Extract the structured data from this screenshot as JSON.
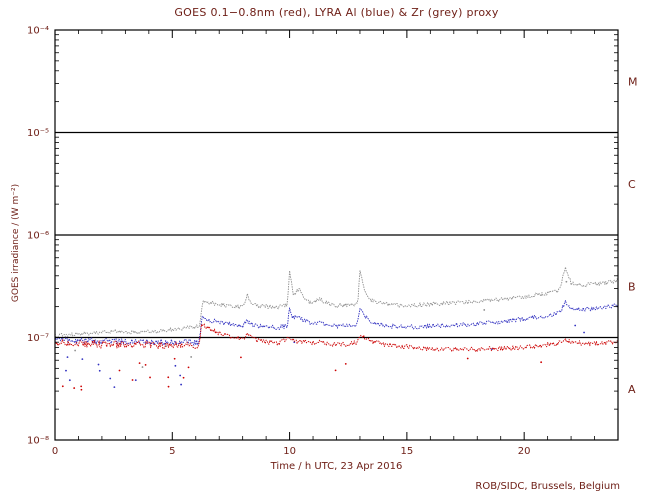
{
  "window": {
    "background": "#ffffff"
  },
  "chart_data": {
    "type": "line",
    "title": "GOES 0.1−0.8nm (red), LYRA Al (blue) & Zr (grey) proxy",
    "xlabel": "Time / h UTC, 23 Apr 2016",
    "ylabel": "GOES irradiance / (W m⁻²)",
    "footer": "ROB/SIDC, Brussels, Belgium",
    "x_range": [
      0,
      24
    ],
    "x_major_ticks": [
      0,
      5,
      10,
      15,
      20
    ],
    "x_minor_step": 1,
    "y_log_range": [
      -8,
      -4
    ],
    "y_tick_exponents": [
      -8,
      -7,
      -6,
      -5,
      -4
    ],
    "y_tick_labels": [
      "10⁻⁸",
      "10⁻⁷",
      "10⁻⁶",
      "10⁻⁵",
      "10⁻⁴"
    ],
    "hline_exponents": [
      -7,
      -6,
      -5
    ],
    "flare_classes": [
      {
        "label": "A",
        "band": [
          -8,
          -7
        ]
      },
      {
        "label": "B",
        "band": [
          -7,
          -6
        ]
      },
      {
        "label": "C",
        "band": [
          -6,
          -5
        ]
      },
      {
        "label": "M",
        "band": [
          -5,
          -4
        ]
      }
    ],
    "grid": false,
    "legend_position": "in-title",
    "colors": {
      "red": "#cc0000",
      "blue": "#3030c0",
      "grey": "#909090",
      "frame": "#000000",
      "text": "#6f2018"
    },
    "value_scale": 1e-08,
    "series": [
      {
        "name": "LYRA Zr proxy",
        "color": "grey",
        "jump_x": 6.2,
        "noise_pre": 0.018,
        "noise_post": 0.02,
        "low_dots_pre": 4,
        "low_dots_post": 2,
        "x": [
          0,
          0.5,
          1,
          1.5,
          2,
          2.5,
          3,
          3.5,
          4,
          4.5,
          5,
          5.5,
          6,
          6.15,
          6.3,
          6.6,
          7,
          7.5,
          8,
          8.2,
          8.35,
          8.6,
          9,
          9.5,
          9.9,
          10.0,
          10.15,
          10.4,
          10.55,
          10.8,
          11,
          11.25,
          11.5,
          12,
          12.5,
          12.9,
          13.0,
          13.2,
          13.5,
          14,
          14.5,
          15,
          15.5,
          16,
          17,
          18,
          19,
          20,
          20.5,
          21,
          21.5,
          21.75,
          22,
          22.5,
          23,
          23.5,
          24
        ],
        "v": [
          10.5,
          10.6,
          10.8,
          11.0,
          11.2,
          11.6,
          11.3,
          11.2,
          11.4,
          11.6,
          12.0,
          12.4,
          12.8,
          12.8,
          23.0,
          22.0,
          21.0,
          20.2,
          19.8,
          26.0,
          22.0,
          20.5,
          20.0,
          19.8,
          20.5,
          45.0,
          26.0,
          30.0,
          25.0,
          22.5,
          21.5,
          24.0,
          22.0,
          20.5,
          20.8,
          21.5,
          45.0,
          28.0,
          23.0,
          21.5,
          20.8,
          20.5,
          20.8,
          21.2,
          21.8,
          22.5,
          23.5,
          25.0,
          26.0,
          27.0,
          29.0,
          48.0,
          34.0,
          32.5,
          33.5,
          34.0,
          36.0
        ]
      },
      {
        "name": "LYRA Al proxy",
        "color": "blue",
        "jump_x": 6.2,
        "noise_pre": 0.03,
        "noise_post": 0.022,
        "low_dots_pre": 12,
        "low_dots_post": 4,
        "x": [
          0,
          0.5,
          1,
          1.5,
          2,
          2.5,
          3,
          3.5,
          4,
          4.5,
          5,
          5.5,
          6,
          6.15,
          6.25,
          6.5,
          7,
          7.5,
          8,
          8.2,
          8.35,
          8.6,
          9,
          9.5,
          9.9,
          10.0,
          10.15,
          10.4,
          10.55,
          10.8,
          11,
          11.25,
          11.5,
          12,
          12.5,
          12.9,
          13.0,
          13.2,
          13.5,
          14,
          14.5,
          15,
          15.5,
          16,
          17,
          18,
          19,
          20,
          20.5,
          21,
          21.5,
          21.75,
          22,
          22.5,
          23,
          23.5,
          24
        ],
        "v": [
          9.5,
          9.3,
          9.2,
          9.4,
          9.1,
          9.2,
          9.0,
          9.2,
          9.1,
          9.0,
          9.1,
          9.0,
          9.0,
          9.0,
          15.5,
          15.0,
          14.0,
          13.4,
          13.0,
          14.5,
          13.6,
          13.0,
          12.8,
          12.5,
          13.0,
          19.0,
          15.5,
          16.5,
          15.0,
          14.0,
          13.5,
          14.2,
          13.5,
          12.8,
          13.0,
          13.5,
          20.0,
          16.0,
          14.0,
          13.2,
          12.8,
          12.6,
          12.8,
          13.0,
          13.2,
          13.6,
          14.2,
          15.2,
          15.8,
          16.3,
          17.2,
          22.0,
          19.0,
          18.8,
          19.3,
          19.8,
          20.5
        ]
      },
      {
        "name": "GOES 0.1−0.8nm",
        "color": "red",
        "jump_x": 6.2,
        "noise_pre": 0.035,
        "noise_post": 0.022,
        "low_dots_pre": 14,
        "low_dots_post": 5,
        "x": [
          0,
          0.5,
          1,
          1.5,
          2,
          2.5,
          3,
          3.5,
          4,
          4.5,
          5,
          5.5,
          6,
          6.15,
          6.25,
          6.5,
          7,
          7.5,
          8,
          8.2,
          8.35,
          8.6,
          9,
          9.5,
          10,
          10.1,
          10.3,
          10.6,
          11,
          11.3,
          11.6,
          12,
          12.5,
          12.9,
          13.05,
          13.3,
          13.6,
          14,
          14.5,
          15,
          15.5,
          16,
          17,
          18,
          19,
          20,
          20.5,
          21,
          21.5,
          21.8,
          22,
          22.5,
          23,
          23.5,
          24
        ],
        "v": [
          9.0,
          8.8,
          8.6,
          8.8,
          8.5,
          8.6,
          8.4,
          8.6,
          8.5,
          8.4,
          8.5,
          8.4,
          8.3,
          8.3,
          13.5,
          12.5,
          11.0,
          10.2,
          9.6,
          10.5,
          10.0,
          9.4,
          9.0,
          8.8,
          10.0,
          9.6,
          9.2,
          9.0,
          8.8,
          9.0,
          8.7,
          8.5,
          8.6,
          9.0,
          10.5,
          9.6,
          9.0,
          8.6,
          8.3,
          8.1,
          7.9,
          7.8,
          7.7,
          7.7,
          7.8,
          8.0,
          8.2,
          8.5,
          8.8,
          9.5,
          9.0,
          8.8,
          8.7,
          8.9,
          9.2
        ]
      }
    ]
  }
}
